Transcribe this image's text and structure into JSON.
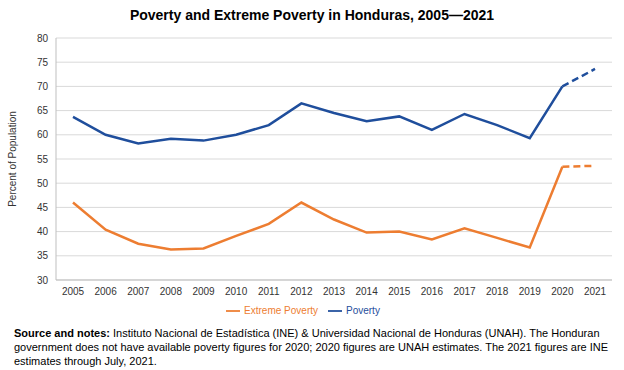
{
  "chart_data": {
    "type": "line",
    "title": "Poverty and Extreme Poverty in Honduras, 2005—2021",
    "categories": [
      "2005",
      "2006",
      "2007",
      "2008",
      "2009",
      "2010",
      "2011",
      "2012",
      "2013",
      "2014",
      "2015",
      "2016",
      "2017",
      "2018",
      "2019",
      "2020",
      "2021"
    ],
    "y_label": "Percent of Population",
    "ylim": [
      30,
      80
    ],
    "yticks": [
      30,
      35,
      40,
      45,
      50,
      55,
      60,
      65,
      70,
      75,
      80
    ],
    "grid": true,
    "legend": "bottom",
    "series": [
      {
        "name": "Poverty",
        "color": "#1f4e9c",
        "line_style": "solid",
        "values": [
          63.7,
          60.0,
          58.2,
          59.2,
          58.8,
          60.0,
          62.0,
          66.5,
          64.5,
          62.8,
          63.8,
          61.0,
          64.3,
          62.0,
          59.3,
          70.0,
          null
        ]
      },
      {
        "name": "Poverty",
        "color": "#1f4e9c",
        "line_style": "dashed",
        "values": [
          null,
          null,
          null,
          null,
          null,
          null,
          null,
          null,
          null,
          null,
          null,
          null,
          null,
          null,
          null,
          70.0,
          73.6
        ]
      },
      {
        "name": "Extreme Poverty",
        "color": "#ed7d31",
        "line_style": "solid",
        "values": [
          46.0,
          40.4,
          37.5,
          36.3,
          36.5,
          39.1,
          41.6,
          46.0,
          42.5,
          39.8,
          40.0,
          38.4,
          40.7,
          38.7,
          36.7,
          53.4,
          null
        ]
      },
      {
        "name": "Extreme Poverty",
        "color": "#ed7d31",
        "line_style": "dashed",
        "values": [
          null,
          null,
          null,
          null,
          null,
          null,
          null,
          null,
          null,
          null,
          null,
          null,
          null,
          null,
          null,
          53.4,
          53.6
        ]
      }
    ],
    "note_label": "Source and notes:",
    "note": "Instituto Nacional de Estadística (INE) & Universidad Nacional de Honduras (UNAH). The Honduran government does not have available poverty figures for 2020; 2020 figures are UNAH estimates. The 2021 figures are INE estimates through July, 2021."
  }
}
